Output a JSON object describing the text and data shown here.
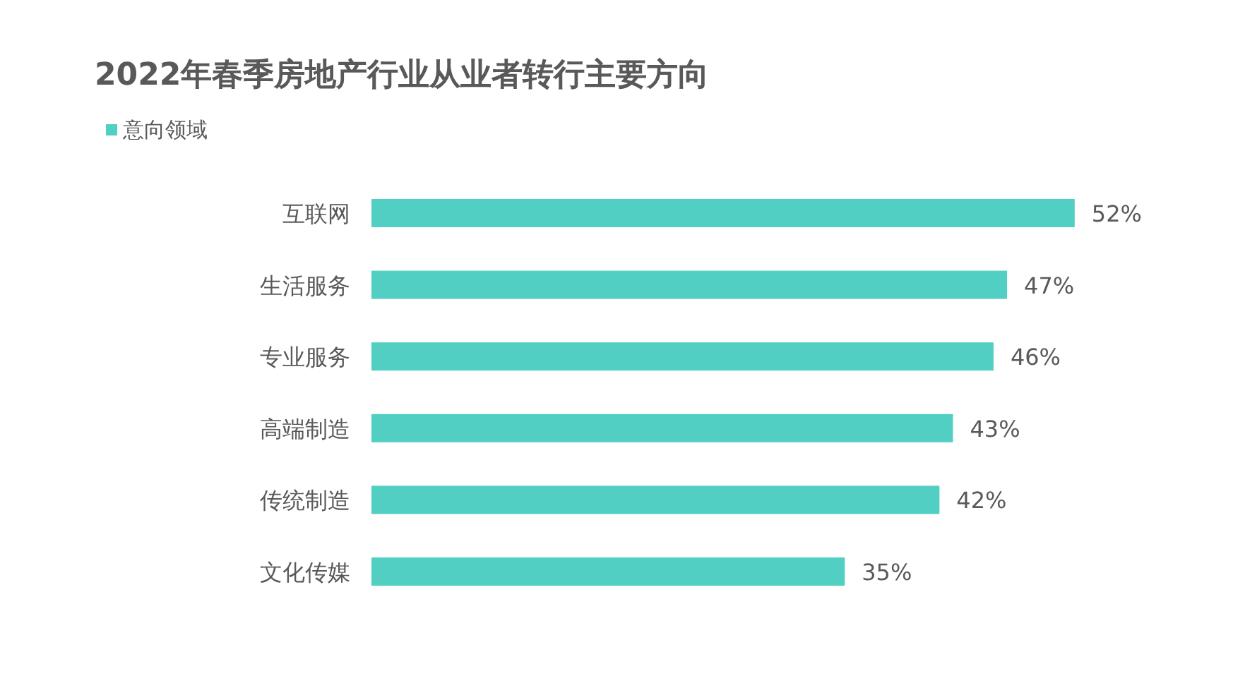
{
  "chart_data": {
    "type": "bar",
    "orientation": "horizontal",
    "title": "2022年春季房地产行业从业者转行主要方向",
    "categories": [
      "互联网",
      "生活服务",
      "专业服务",
      "高端制造",
      "传统制造",
      "文化传媒"
    ],
    "series": [
      {
        "name": "意向领域",
        "color": "#52cfc3",
        "values": [
          52,
          47,
          46,
          43,
          42,
          35
        ],
        "value_labels": [
          "52%",
          "47%",
          "46%",
          "43%",
          "42%",
          "35%"
        ]
      }
    ],
    "legend": "top left"
  }
}
